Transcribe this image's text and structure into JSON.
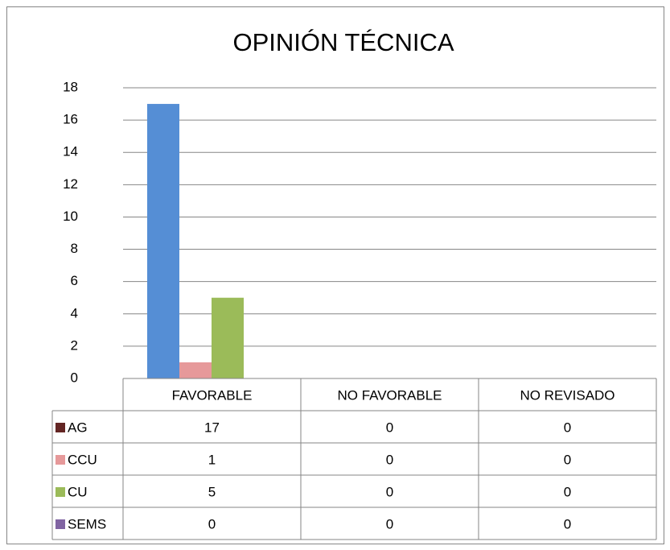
{
  "chart_data": {
    "type": "bar",
    "title": "OPINIÓN TÉCNICA",
    "categories": [
      "FAVORABLE",
      "NO FAVORABLE",
      "NO REVISADO"
    ],
    "series": [
      {
        "name": "AG",
        "color": "#558ed5",
        "legend_color": "#632523",
        "values": [
          17,
          0,
          0
        ]
      },
      {
        "name": "CCU",
        "color": "#e6999a",
        "legend_color": "#e6999a",
        "values": [
          1,
          0,
          0
        ]
      },
      {
        "name": "CU",
        "color": "#9bbb59",
        "legend_color": "#9bbb59",
        "values": [
          5,
          0,
          0
        ]
      },
      {
        "name": "SEMS",
        "color": "#8064a2",
        "legend_color": "#8064a2",
        "values": [
          0,
          0,
          0
        ]
      }
    ],
    "ylim": [
      0,
      18
    ],
    "yticks": [
      0,
      2,
      4,
      6,
      8,
      10,
      12,
      14,
      16,
      18
    ],
    "grid": true,
    "data_table": true
  }
}
